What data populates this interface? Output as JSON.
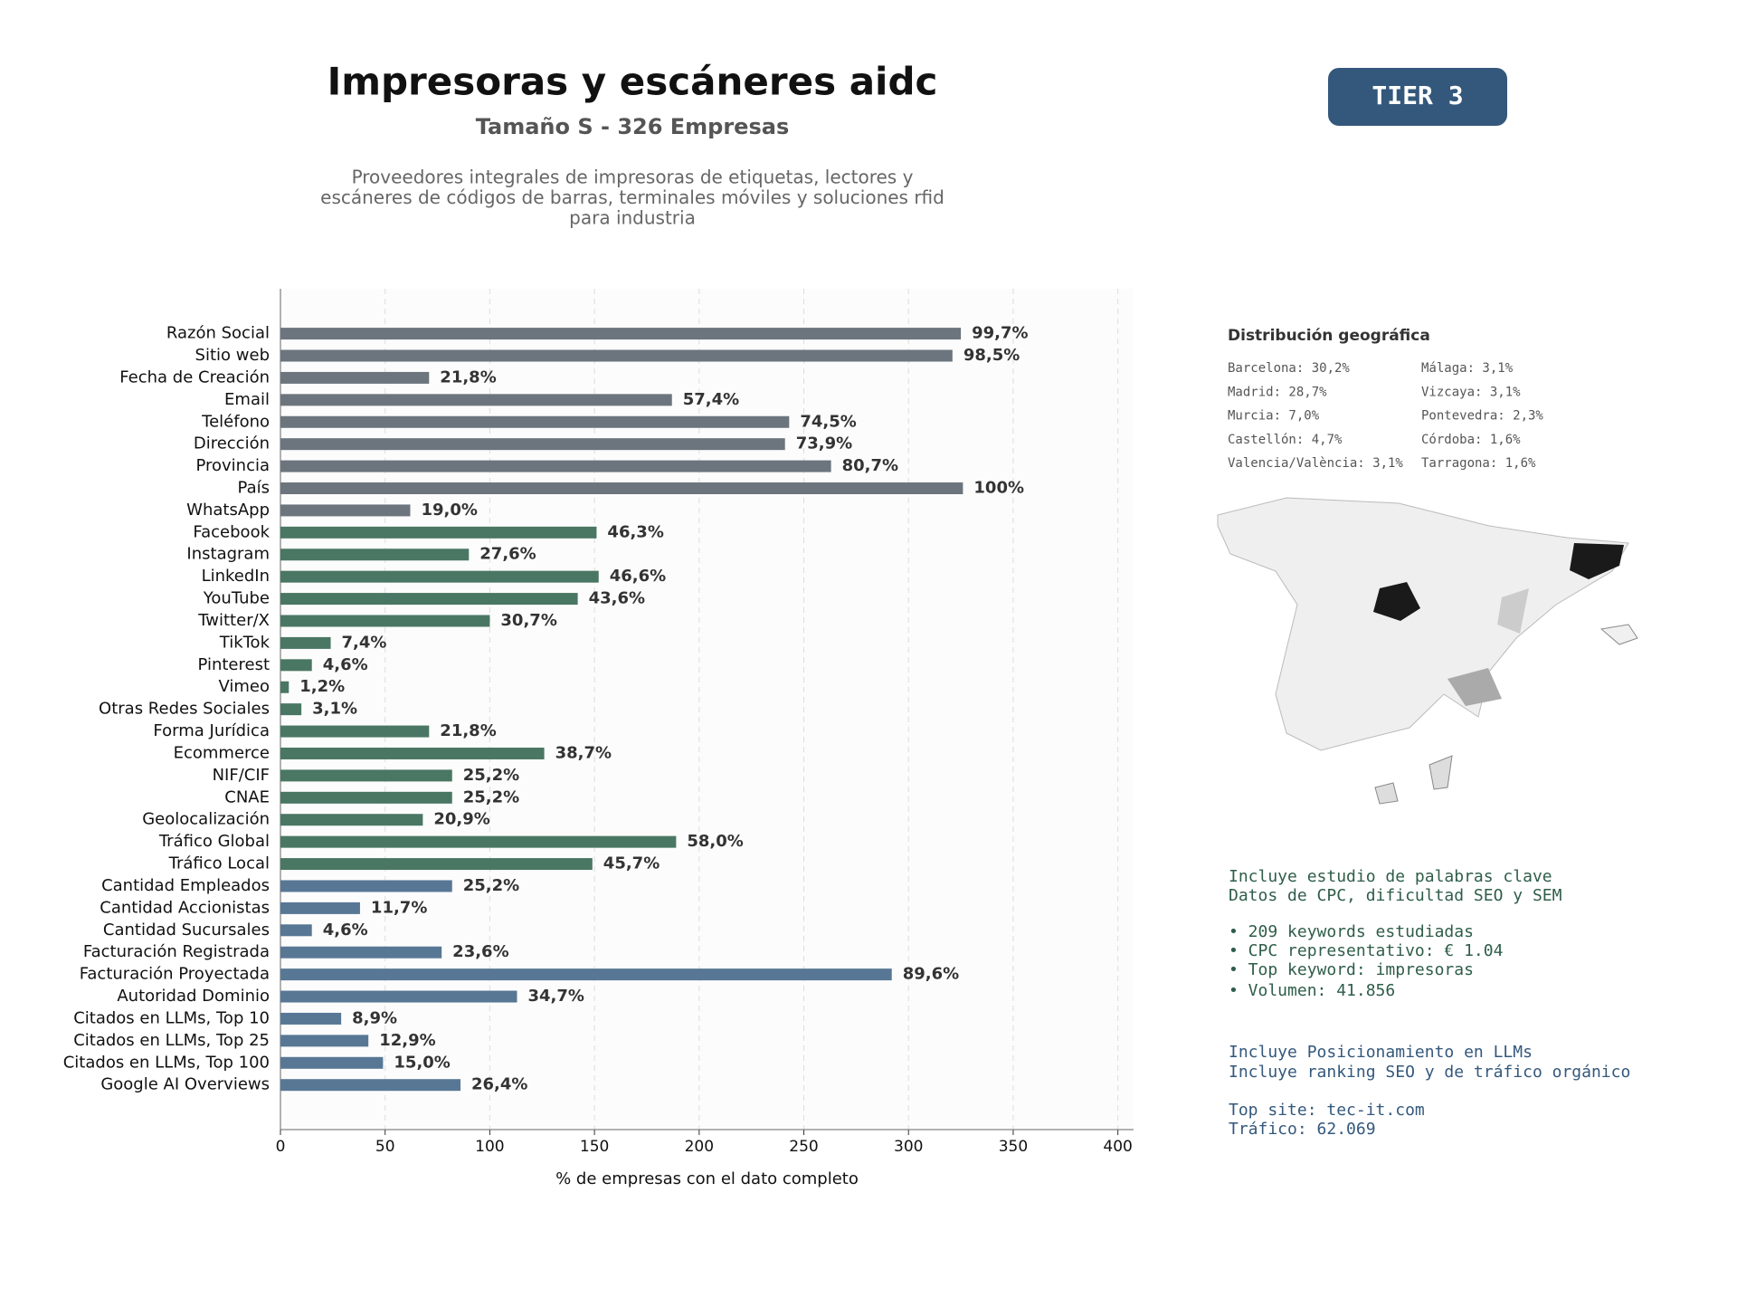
{
  "chart_data": {
    "type": "barh",
    "title": "Impresoras y escáneres aidc",
    "subtitle": "Tamaño S - 326 Empresas",
    "description": [
      "Proveedores integrales de impresoras de etiquetas, lectores y",
      "escáneres de códigos de barras, terminales móviles y soluciones rfid",
      "para industria"
    ],
    "xlabel": "% de empresas con el dato completo",
    "categories": [
      "Razón Social",
      "Sitio web",
      "Fecha de Creación",
      "Email",
      "Teléfono",
      "Dirección",
      "Provincia",
      "País",
      "WhatsApp",
      "Facebook",
      "Instagram",
      "LinkedIn",
      "YouTube",
      "Twitter/X",
      "TikTok",
      "Pinterest",
      "Vimeo",
      "Otras Redes Sociales",
      "Forma Jurídica",
      "Ecommerce",
      "NIF/CIF",
      "CNAE",
      "Geolocalización",
      "Tráfico Global",
      "Tráfico Local",
      "Cantidad Empleados",
      "Cantidad Accionistas",
      "Cantidad Sucursales",
      "Facturación Registrada",
      "Facturación Proyectada",
      "Autoridad Dominio",
      "Citados en LLMs, Top 10",
      "Citados en LLMs, Top 25",
      "Citados en LLMs, Top 100",
      "Google AI Overviews"
    ],
    "values": [
      325,
      321,
      71,
      187,
      243,
      241,
      263,
      326,
      62,
      151,
      90,
      152,
      142,
      100,
      24,
      15,
      4,
      10,
      71,
      126,
      82,
      82,
      68,
      189,
      149,
      82,
      38,
      15,
      77,
      292,
      113,
      29,
      42,
      49,
      86
    ],
    "value_labels": [
      "99,7%",
      "98,5%",
      "21,8%",
      "57,4%",
      "74,5%",
      "73,9%",
      "80,7%",
      "100%",
      "19,0%",
      "46,3%",
      "27,6%",
      "46,6%",
      "43,6%",
      "30,7%",
      "7,4%",
      "4,6%",
      "1,2%",
      "3,1%",
      "21,8%",
      "38,7%",
      "25,2%",
      "25,2%",
      "20,9%",
      "58,0%",
      "45,7%",
      "25,2%",
      "11,7%",
      "4,6%",
      "23,6%",
      "89,6%",
      "34,7%",
      "8,9%",
      "12,9%",
      "15,0%",
      "26,4%"
    ],
    "colors": [
      "#6c757d",
      "#6c757d",
      "#6c757d",
      "#6c757d",
      "#6c757d",
      "#6c757d",
      "#6c757d",
      "#6c757d",
      "#6c757d",
      "#4a7763",
      "#4a7763",
      "#4a7763",
      "#4a7763",
      "#4a7763",
      "#4a7763",
      "#4a7763",
      "#4a7763",
      "#4a7763",
      "#4a7763",
      "#4a7763",
      "#4a7763",
      "#4a7763",
      "#4a7763",
      "#4a7763",
      "#4a7763",
      "#587795",
      "#587795",
      "#587795",
      "#587795",
      "#587795",
      "#587795",
      "#587795",
      "#587795",
      "#587795",
      "#587795"
    ],
    "xlim": [
      0,
      407.5
    ],
    "xticks": [
      0,
      50,
      100,
      150,
      200,
      250,
      300,
      350,
      400
    ],
    "grid": true
  },
  "badge": "TIER 3",
  "geo": {
    "title": "Distribución geográfica",
    "items": [
      "Barcelona: 30,2%",
      "Madrid: 28,7%",
      "Murcia: 7,0%",
      "Castellón: 4,7%",
      "Valencia/València: 3,1%",
      "Málaga: 3,1%",
      "Vizcaya: 3,1%",
      "Pontevedra: 2,3%",
      "Córdoba: 1,6%",
      "Tarragona: 1,6%"
    ]
  },
  "notes": {
    "seo": [
      "Incluye estudio de palabras clave",
      "Datos de CPC, dificultad SEO y SEM",
      "• 209 keywords estudiadas",
      "• CPC representativo: € 1.04",
      "• Top keyword: impresoras",
      "• Volumen: 41.856"
    ],
    "llm": [
      "Incluye Posicionamiento en LLMs",
      "Incluye ranking SEO y de tráfico orgánico",
      "Top site: tec-it.com",
      "Tráfico: 62.069"
    ]
  }
}
